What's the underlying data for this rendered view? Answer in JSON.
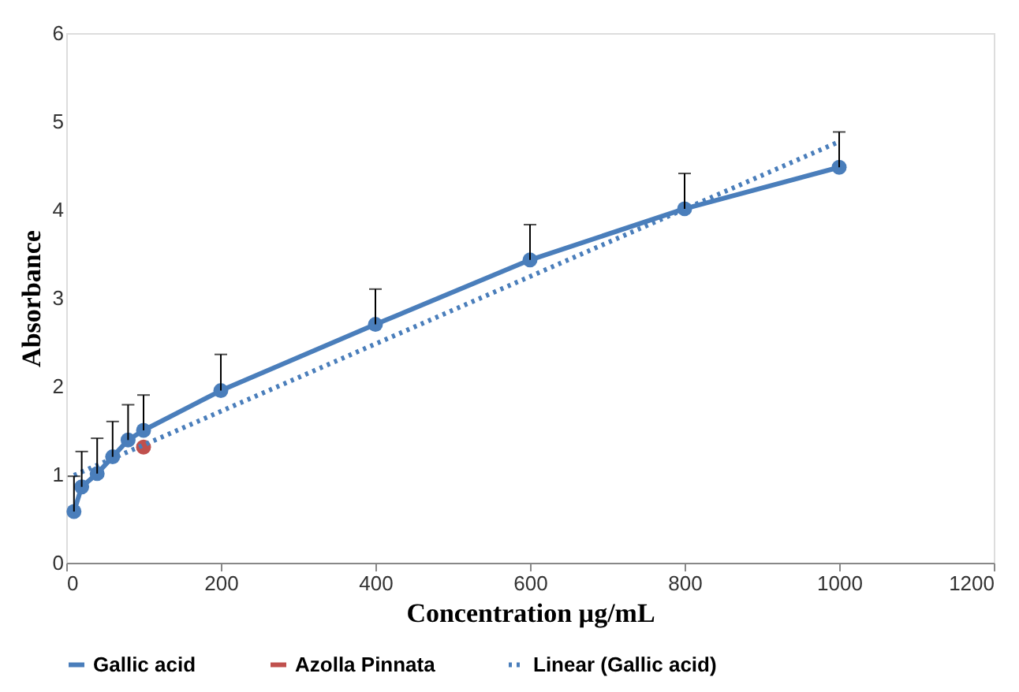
{
  "chart_data": {
    "type": "line",
    "xlabel": "Concentration µg/mL",
    "ylabel": "Absorbance",
    "xlim": [
      0,
      1200
    ],
    "xticks": [
      0,
      200,
      400,
      600,
      800,
      1000,
      1200
    ],
    "ylim": [
      0,
      6
    ],
    "yticks": [
      0,
      1,
      2,
      3,
      4,
      5,
      6
    ],
    "grid": false,
    "legend": "bottom",
    "marker": "circle",
    "series": [
      {
        "name": "Gallic acid",
        "color": "#4a7ebb",
        "x": [
          10,
          20,
          40,
          60,
          80,
          100,
          200,
          400,
          600,
          800,
          1000
        ],
        "values": [
          0.58,
          0.86,
          1.01,
          1.2,
          1.39,
          1.5,
          1.95,
          2.7,
          3.43,
          4.01,
          4.48
        ],
        "errors": [
          [
            0.58,
            0.98
          ],
          [
            0.86,
            1.26
          ],
          [
            1.01,
            1.41
          ],
          [
            1.2,
            1.6
          ],
          [
            1.39,
            1.79
          ],
          [
            1.5,
            1.9
          ],
          [
            1.95,
            2.36
          ],
          [
            2.7,
            3.1
          ],
          [
            3.43,
            3.83
          ],
          [
            4.01,
            4.41
          ],
          [
            4.48,
            4.88
          ]
        ]
      },
      {
        "name": "Azolla Pinnata",
        "type": "scatter",
        "color": "#c0504d",
        "x": [
          100
        ],
        "values": [
          1.31
        ]
      },
      {
        "name": "Linear (Gallic acid)",
        "type": "line",
        "color": "#4a7ebb",
        "marker": "none",
        "line_style": "dotted",
        "x": [
          10,
          1000
        ],
        "values": [
          0.99,
          4.77
        ]
      }
    ]
  }
}
